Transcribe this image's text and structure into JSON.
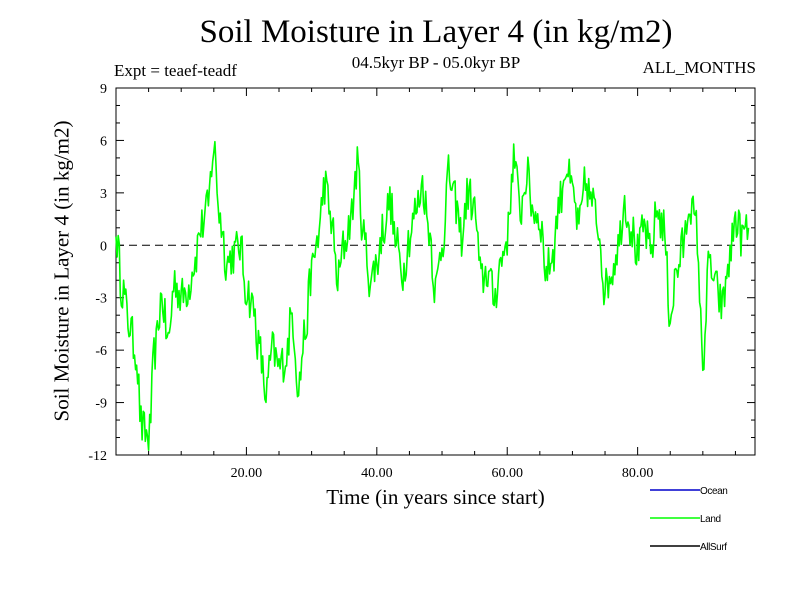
{
  "chart_data": {
    "type": "line",
    "title": "Soil Moisture in Layer 4 (in kg/m2)",
    "subtitle": "04.5kyr BP - 05.0kyr BP",
    "experiment": "Expt = teaef-teadf",
    "period": "ALL_MONTHS",
    "xlabel": "Time (in years since start)",
    "ylabel": "Soil Moisture in Layer 4 (in kg/m2)",
    "xlim": [
      0,
      98
    ],
    "ylim": [
      -12,
      9
    ],
    "x_ticks": [
      20,
      40,
      60,
      80
    ],
    "x_tick_labels": [
      "20.00",
      "40.00",
      "60.00",
      "80.00"
    ],
    "y_ticks": [
      9,
      6,
      3,
      0,
      -3,
      -6,
      -9,
      -12
    ],
    "y_tick_labels": [
      "9",
      "6",
      "3",
      "0",
      "-3",
      "-6",
      "-9",
      "-12"
    ],
    "reference_line": 0,
    "legend_position": "bottom-right",
    "legend": [
      {
        "name": "Ocean",
        "label": "Ocean",
        "color": "#0000cc"
      },
      {
        "name": "Land",
        "label": "Land",
        "color": "#00ff00"
      },
      {
        "name": "AllSurf",
        "label": "AllSurf",
        "color": "#000000"
      }
    ],
    "series": [
      {
        "name": "Land",
        "color": "#00ff00",
        "x_start": 0,
        "x_step": 1,
        "values": [
          0.5,
          -2.5,
          -4.5,
          -6.0,
          -10.5,
          -11.0,
          -6.0,
          -3.0,
          -5.5,
          -2.0,
          -3.0,
          -2.5,
          -1.0,
          1.0,
          2.0,
          5.5,
          1.5,
          -1.0,
          -0.5,
          0.0,
          -2.5,
          -3.5,
          -6.0,
          -8.5,
          -6.0,
          -7.0,
          -6.5,
          -4.0,
          -8.0,
          -5.0,
          -1.5,
          0.5,
          3.5,
          1.5,
          -2.0,
          0.0,
          1.5,
          4.5,
          0.5,
          -2.0,
          -1.0,
          1.0,
          2.5,
          0.0,
          -1.5,
          0.5,
          2.0,
          3.5,
          1.0,
          -2.5,
          0.0,
          4.0,
          2.5,
          0.5,
          3.0,
          2.0,
          -2.0,
          -1.5,
          -3.0,
          -1.0,
          0.5,
          5.0,
          2.0,
          4.0,
          2.0,
          1.5,
          -1.5,
          -0.5,
          2.5,
          4.5,
          3.0,
          1.0,
          3.5,
          2.5,
          1.0,
          -2.5,
          -1.5,
          0.0,
          2.5,
          1.0,
          -0.5,
          1.0,
          -0.5,
          2.0,
          1.0,
          -4.0,
          -1.5,
          0.0,
          2.5,
          1.0,
          -6.5,
          -1.0,
          -2.5,
          -3.5,
          -1.0,
          1.5,
          0.5,
          1.0
        ]
      },
      {
        "name": "Ocean",
        "color": "#0000cc",
        "values": []
      },
      {
        "name": "AllSurf",
        "color": "#000000",
        "values": []
      }
    ]
  }
}
